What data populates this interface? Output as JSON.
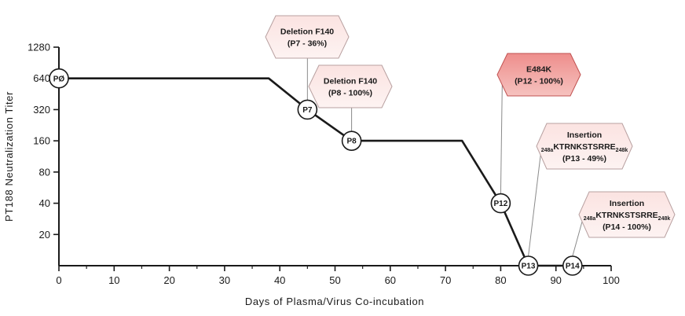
{
  "chart_data": {
    "type": "line",
    "xlabel": "Days of Plasma/Virus Co-incubation",
    "ylabel": "PT188 Neutralization Titer",
    "xlim": [
      0,
      100
    ],
    "x_ticks": [
      0,
      10,
      20,
      30,
      40,
      50,
      60,
      70,
      80,
      90,
      100
    ],
    "y_scale": "log2",
    "y_ticks": [
      20,
      40,
      80,
      160,
      320,
      640,
      1280
    ],
    "y_tick_labels": [
      "20",
      "40",
      "80",
      "160",
      "320",
      "640",
      "1280"
    ],
    "y_floor": 10,
    "grid": false,
    "series": [
      {
        "x": [
          0,
          38,
          45,
          53,
          73,
          80,
          85,
          93
        ],
        "y": [
          640,
          640,
          320,
          160,
          160,
          40,
          10,
          10
        ]
      }
    ],
    "points": [
      {
        "label": "PØ",
        "x": 0,
        "y": 640
      },
      {
        "label": "P7",
        "x": 45,
        "y": 320
      },
      {
        "label": "P8",
        "x": 53,
        "y": 160
      },
      {
        "label": "P12",
        "x": 80,
        "y": 40
      },
      {
        "label": "P13",
        "x": 85,
        "y": 10
      },
      {
        "label": "P14",
        "x": 93,
        "y": 10
      }
    ],
    "annotations": [
      {
        "point": "P7",
        "lines": [
          "Deletion F140",
          "(P7 - 36%)"
        ],
        "highlight": false
      },
      {
        "point": "P8",
        "lines": [
          "Deletion F140",
          "(P8 - 100%)"
        ],
        "highlight": false
      },
      {
        "point": "P12",
        "lines": [
          "E484K",
          "(P12 - 100%)"
        ],
        "highlight": true
      },
      {
        "point": "P13",
        "lines": [
          "Insertion",
          "KTRNKSTSRRE",
          "(P13 - 49%)"
        ],
        "sub_left": "248a",
        "sub_right": "248k",
        "highlight": false
      },
      {
        "point": "P14",
        "lines": [
          "Insertion",
          "KTRNKSTSRRE",
          "(P14 - 100%)"
        ],
        "sub_left": "248a",
        "sub_right": "248k",
        "highlight": false
      }
    ]
  }
}
